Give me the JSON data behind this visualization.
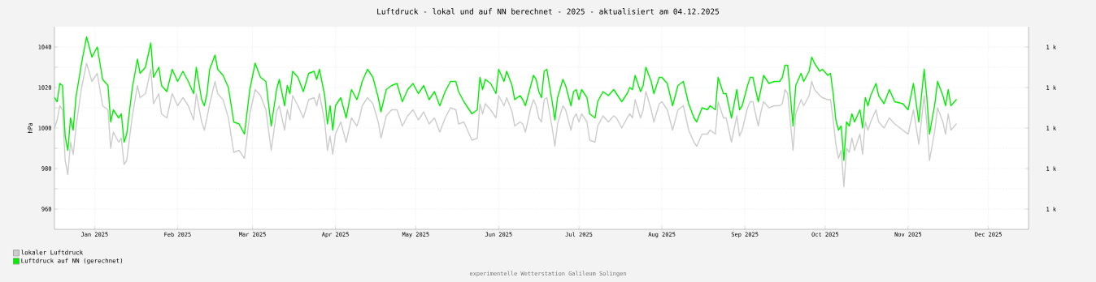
{
  "chart_data": {
    "type": "line",
    "title": "Luftdruck - lokal und auf NN berechnet - 2025 - aktualisiert am 04.12.2025",
    "ylabel": "hPa",
    "annotations": [
      "experimentelle Wetterstation Galileum Solingen"
    ],
    "x": [
      "2025-01-01",
      "2025-01-02",
      "2025-01-03",
      "2025-01-04",
      "2025-01-05",
      "2025-01-06",
      "2025-01-07",
      "2025-01-08",
      "2025-01-09",
      "2025-01-11",
      "2025-01-13",
      "2025-01-15",
      "2025-01-17",
      "2025-01-19",
      "2025-01-21",
      "2025-01-22",
      "2025-01-23",
      "2025-01-25",
      "2025-01-26",
      "2025-01-27",
      "2025-01-28",
      "2025-01-30",
      "2025-02-01",
      "2025-02-02",
      "2025-02-04",
      "2025-02-06",
      "2025-02-07",
      "2025-02-09",
      "2025-02-10",
      "2025-02-12",
      "2025-02-14",
      "2025-02-16",
      "2025-02-18",
      "2025-02-20",
      "2025-02-22",
      "2025-02-23",
      "2025-02-25",
      "2025-02-26",
      "2025-02-27",
      "2025-02-28",
      "2025-03-02",
      "2025-03-03",
      "2025-03-05",
      "2025-03-07",
      "2025-03-09",
      "2025-03-11",
      "2025-03-13",
      "2025-03-15",
      "2025-03-17",
      "2025-03-19",
      "2025-03-21",
      "2025-03-23",
      "2025-03-25",
      "2025-03-26",
      "2025-03-28",
      "2025-03-29",
      "2025-03-30",
      "2025-03-31",
      "2025-04-02",
      "2025-04-04",
      "2025-04-06",
      "2025-04-08",
      "2025-04-09",
      "2025-04-10",
      "2025-04-12",
      "2025-04-13",
      "2025-04-14",
      "2025-04-15",
      "2025-04-16",
      "2025-04-18",
      "2025-04-20",
      "2025-04-22",
      "2025-04-24",
      "2025-04-25",
      "2025-04-26",
      "2025-04-28",
      "2025-04-30",
      "2025-05-02",
      "2025-05-03",
      "2025-05-05",
      "2025-05-07",
      "2025-05-09",
      "2025-05-11",
      "2025-05-13",
      "2025-05-15",
      "2025-05-17",
      "2025-05-19",
      "2025-05-21",
      "2025-05-23",
      "2025-05-25",
      "2025-05-27",
      "2025-05-29",
      "2025-05-31",
      "2025-06-01",
      "2025-06-03",
      "2025-06-06",
      "2025-06-08",
      "2025-06-09",
      "2025-06-10",
      "2025-06-11",
      "2025-06-13",
      "2025-06-15",
      "2025-06-16",
      "2025-06-18",
      "2025-06-19",
      "2025-06-21",
      "2025-06-22",
      "2025-06-24",
      "2025-06-25",
      "2025-06-26",
      "2025-06-28",
      "2025-06-29",
      "2025-06-30",
      "2025-07-01",
      "2025-07-02",
      "2025-07-03",
      "2025-07-04",
      "2025-07-06",
      "2025-07-07",
      "2025-07-08",
      "2025-07-10",
      "2025-07-11",
      "2025-07-13",
      "2025-07-14",
      "2025-07-15",
      "2025-07-16",
      "2025-07-17",
      "2025-07-19",
      "2025-07-20",
      "2025-07-22",
      "2025-07-23",
      "2025-07-25",
      "2025-07-27",
      "2025-07-29",
      "2025-07-30",
      "2025-08-01",
      "2025-08-03",
      "2025-08-04",
      "2025-08-05",
      "2025-08-06",
      "2025-08-08",
      "2025-08-09",
      "2025-08-10",
      "2025-08-12",
      "2025-08-13",
      "2025-08-15",
      "2025-08-16",
      "2025-08-18",
      "2025-08-20",
      "2025-08-22",
      "2025-08-24",
      "2025-08-26",
      "2025-08-28",
      "2025-08-29",
      "2025-08-31",
      "2025-09-02",
      "2025-09-03",
      "2025-09-05",
      "2025-09-06",
      "2025-09-08",
      "2025-09-09",
      "2025-09-11",
      "2025-09-13",
      "2025-09-14",
      "2025-09-15",
      "2025-09-17",
      "2025-09-18",
      "2025-09-19",
      "2025-09-21",
      "2025-09-22",
      "2025-09-23",
      "2025-09-25",
      "2025-09-27",
      "2025-09-29",
      "2025-09-30",
      "2025-10-01",
      "2025-10-02",
      "2025-10-04",
      "2025-10-05",
      "2025-10-07",
      "2025-10-08",
      "2025-10-10",
      "2025-10-11",
      "2025-10-12",
      "2025-10-14",
      "2025-10-15",
      "2025-10-17",
      "2025-10-18",
      "2025-10-19",
      "2025-10-20",
      "2025-10-21",
      "2025-10-22",
      "2025-10-23",
      "2025-10-24",
      "2025-10-25",
      "2025-10-26",
      "2025-10-27",
      "2025-10-29",
      "2025-10-30",
      "2025-10-31",
      "2025-11-01",
      "2025-11-02",
      "2025-11-04",
      "2025-11-05",
      "2025-11-07",
      "2025-11-09",
      "2025-11-11",
      "2025-11-14",
      "2025-11-16",
      "2025-11-18",
      "2025-11-20",
      "2025-11-22",
      "2025-11-23",
      "2025-11-24",
      "2025-11-26",
      "2025-11-27",
      "2025-11-29",
      "2025-11-30",
      "2025-12-01",
      "2025-12-02",
      "2025-12-04"
    ],
    "series": [
      {
        "name": "lokaler Luftdruck",
        "color": "#cccccc",
        "values": [
          1000,
          1004,
          1011,
          1009,
          984,
          977,
          993,
          987,
          1000,
          1019,
          1032,
          1023,
          1027,
          1011,
          1009,
          990,
          998,
          993,
          995,
          982,
          984,
          1005,
          1021,
          1015,
          1017,
          1029,
          1012,
          1017,
          1007,
          1005,
          1017,
          1011,
          1015,
          1011,
          1004,
          1017,
          1003,
          999,
          1005,
          1012,
          1023,
          1017,
          1014,
          1005,
          988,
          989,
          985,
          1007,
          1019,
          1016,
          1009,
          989,
          1008,
          1011,
          999,
          1009,
          1004,
          1016,
          1011,
          1005,
          1014,
          1015,
          1011,
          1017,
          1003,
          989,
          996,
          987,
          997,
          1003,
          993,
          1005,
          1001,
          1005,
          1011,
          1015,
          1012,
          1003,
          995,
          1006,
          1009,
          1009,
          1001,
          1006,
          1009,
          1004,
          1008,
          1002,
          1005,
          998,
          1005,
          1010,
          1009,
          1002,
          1003,
          994,
          995,
          1012,
          1007,
          1012,
          1009,
          1005,
          1016,
          1011,
          1015,
          1008,
          1001,
          1003,
          1002,
          998,
          1010,
          1014,
          1011,
          1005,
          1003,
          1014,
          1015,
          1000,
          991,
          1002,
          1011,
          1009,
          999,
          1005,
          1007,
          1003,
          1007,
          1003,
          994,
          993,
          1001,
          1006,
          1003,
          1006,
          1005,
          1000,
          1005,
          1007,
          1005,
          1014,
          1005,
          1009,
          1018,
          1009,
          1003,
          1012,
          1013,
          1009,
          999,
          1009,
          1011,
          999,
          993,
          991,
          997,
          997,
          999,
          997,
          1013,
          1005,
          1005,
          993,
          1006,
          996,
          999,
          1010,
          1013,
          1013,
          1001,
          1008,
          1013,
          1010,
          1011,
          1011,
          1012,
          1019,
          1017,
          989,
          1007,
          1014,
          1011,
          1016,
          1023,
          1019,
          1016,
          1015,
          1014,
          1014,
          1004,
          992,
          985,
          989,
          971,
          990,
          988,
          995,
          989,
          997,
          987,
          1003,
          999,
          1003,
          1009,
          1003,
          1000,
          1005,
          1002,
          999,
          997,
          1009,
          992,
          1016,
          1002,
          984,
          999,
          1010,
          1003,
          997,
          1007,
          999,
          1002
        ]
      },
      {
        "name": "Luftdruck auf NN (gerechnet)",
        "color": "#00ee00",
        "values": [
          1015,
          1013,
          1022,
          1021,
          996,
          989,
          1005,
          999,
          1015,
          1031,
          1045,
          1035,
          1040,
          1024,
          1021,
          1003,
          1009,
          1005,
          1007,
          993,
          997,
          1019,
          1034,
          1027,
          1030,
          1042,
          1025,
          1030,
          1021,
          1018,
          1029,
          1023,
          1028,
          1023,
          1017,
          1030,
          1014,
          1011,
          1017,
          1029,
          1036,
          1029,
          1026,
          1020,
          1003,
          1002,
          997,
          1019,
          1032,
          1025,
          1023,
          1001,
          1019,
          1024,
          1011,
          1021,
          1017,
          1028,
          1025,
          1018,
          1027,
          1028,
          1024,
          1029,
          1016,
          1002,
          1011,
          999,
          1011,
          1015,
          1005,
          1019,
          1014,
          1018,
          1023,
          1029,
          1025,
          1015,
          1008,
          1019,
          1021,
          1022,
          1013,
          1019,
          1022,
          1017,
          1021,
          1014,
          1018,
          1011,
          1018,
          1023,
          1023,
          1018,
          1013,
          1007,
          1009,
          1025,
          1019,
          1024,
          1022,
          1017,
          1029,
          1023,
          1028,
          1021,
          1014,
          1016,
          1014,
          1011,
          1021,
          1026,
          1024,
          1018,
          1015,
          1028,
          1029,
          1013,
          1004,
          1015,
          1024,
          1021,
          1011,
          1018,
          1019,
          1014,
          1019,
          1015,
          1007,
          1005,
          1013,
          1018,
          1016,
          1019,
          1017,
          1013,
          1017,
          1020,
          1019,
          1026,
          1018,
          1021,
          1030,
          1023,
          1017,
          1025,
          1025,
          1022,
          1011,
          1021,
          1023,
          1012,
          1005,
          1003,
          1010,
          1009,
          1011,
          1009,
          1025,
          1017,
          1017,
          1005,
          1019,
          1009,
          1011,
          1021,
          1025,
          1025,
          1013,
          1019,
          1026,
          1022,
          1023,
          1023,
          1025,
          1031,
          1031,
          1001,
          1021,
          1027,
          1023,
          1028,
          1035,
          1032,
          1028,
          1029,
          1026,
          1027,
          1017,
          1004,
          999,
          1001,
          984,
          1003,
          1001,
          1007,
          1003,
          1009,
          1000,
          1015,
          1011,
          1016,
          1022,
          1016,
          1012,
          1019,
          1013,
          1012,
          1009,
          1022,
          1003,
          1029,
          1015,
          997,
          1012,
          1023,
          1016,
          1011,
          1019,
          1011,
          1014
        ]
      }
    ],
    "xlim": [
      "2025-01-01",
      "2025-12-31"
    ],
    "xticks": [
      {
        "value": "2025-01-16",
        "label": "Jan 2025"
      },
      {
        "value": "2025-02-16",
        "label": "Feb 2025"
      },
      {
        "value": "2025-03-16",
        "label": "Mar 2025"
      },
      {
        "value": "2025-04-16",
        "label": "Apr 2025"
      },
      {
        "value": "2025-05-16",
        "label": "May 2025"
      },
      {
        "value": "2025-06-16",
        "label": "Jun 2025"
      },
      {
        "value": "2025-07-16",
        "label": "Jul 2025"
      },
      {
        "value": "2025-08-16",
        "label": "Aug 2025"
      },
      {
        "value": "2025-09-16",
        "label": "Sep 2025"
      },
      {
        "value": "2025-10-16",
        "label": "Oct 2025"
      },
      {
        "value": "2025-11-16",
        "label": "Nov 2025"
      },
      {
        "value": "2025-12-16",
        "label": "Dec 2025"
      }
    ],
    "ylim": [
      950,
      1050
    ],
    "yticks": [
      960,
      {
        "value": 970,
        "label": null
      },
      980,
      {
        "value": 990,
        "label": null
      },
      1000,
      {
        "value": 1010,
        "label": null
      },
      1020,
      {
        "value": 1030,
        "label": null
      },
      1040
    ],
    "y2lim": [
      950,
      1050
    ],
    "y2ticks": [
      {
        "value": 960,
        "label": "1 k"
      },
      {
        "value": 980,
        "label": "1 k"
      },
      {
        "value": 1000,
        "label": "1 k"
      },
      {
        "value": 1020,
        "label": "1 k"
      },
      {
        "value": 1040,
        "label": "1 k"
      }
    ],
    "grid": true,
    "legend": "bottom left"
  }
}
